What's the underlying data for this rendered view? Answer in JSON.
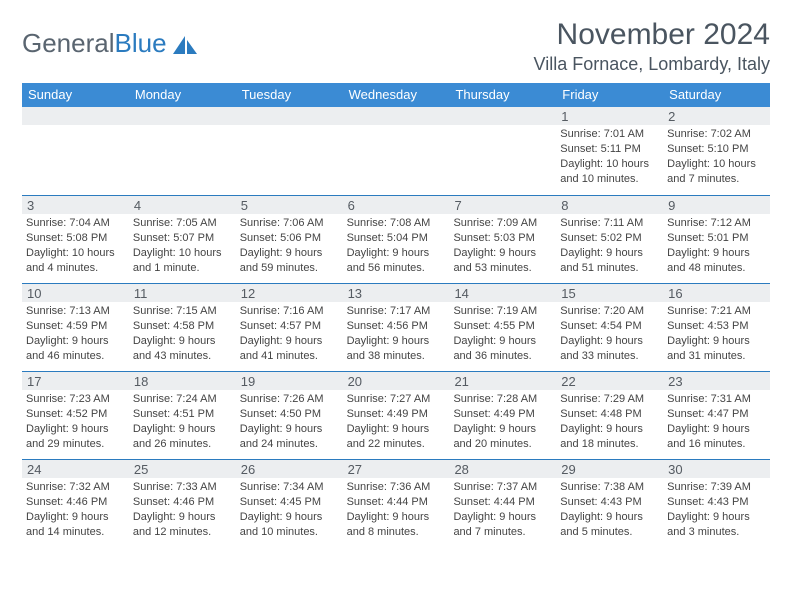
{
  "logo": {
    "text1": "General",
    "text2": "Blue"
  },
  "title": "November 2024",
  "location": "Villa Fornace, Lombardy, Italy",
  "colors": {
    "header_bg": "#3b8bd4",
    "band_bg": "#eceef0",
    "rule": "#2b7bbf",
    "text": "#444444",
    "title_text": "#4a5560"
  },
  "weekdays": [
    "Sunday",
    "Monday",
    "Tuesday",
    "Wednesday",
    "Thursday",
    "Friday",
    "Saturday"
  ],
  "weeks": [
    [
      {
        "n": "",
        "sr": "",
        "ss": "",
        "dl": ""
      },
      {
        "n": "",
        "sr": "",
        "ss": "",
        "dl": ""
      },
      {
        "n": "",
        "sr": "",
        "ss": "",
        "dl": ""
      },
      {
        "n": "",
        "sr": "",
        "ss": "",
        "dl": ""
      },
      {
        "n": "",
        "sr": "",
        "ss": "",
        "dl": ""
      },
      {
        "n": "1",
        "sr": "Sunrise: 7:01 AM",
        "ss": "Sunset: 5:11 PM",
        "dl": "Daylight: 10 hours and 10 minutes."
      },
      {
        "n": "2",
        "sr": "Sunrise: 7:02 AM",
        "ss": "Sunset: 5:10 PM",
        "dl": "Daylight: 10 hours and 7 minutes."
      }
    ],
    [
      {
        "n": "3",
        "sr": "Sunrise: 7:04 AM",
        "ss": "Sunset: 5:08 PM",
        "dl": "Daylight: 10 hours and 4 minutes."
      },
      {
        "n": "4",
        "sr": "Sunrise: 7:05 AM",
        "ss": "Sunset: 5:07 PM",
        "dl": "Daylight: 10 hours and 1 minute."
      },
      {
        "n": "5",
        "sr": "Sunrise: 7:06 AM",
        "ss": "Sunset: 5:06 PM",
        "dl": "Daylight: 9 hours and 59 minutes."
      },
      {
        "n": "6",
        "sr": "Sunrise: 7:08 AM",
        "ss": "Sunset: 5:04 PM",
        "dl": "Daylight: 9 hours and 56 minutes."
      },
      {
        "n": "7",
        "sr": "Sunrise: 7:09 AM",
        "ss": "Sunset: 5:03 PM",
        "dl": "Daylight: 9 hours and 53 minutes."
      },
      {
        "n": "8",
        "sr": "Sunrise: 7:11 AM",
        "ss": "Sunset: 5:02 PM",
        "dl": "Daylight: 9 hours and 51 minutes."
      },
      {
        "n": "9",
        "sr": "Sunrise: 7:12 AM",
        "ss": "Sunset: 5:01 PM",
        "dl": "Daylight: 9 hours and 48 minutes."
      }
    ],
    [
      {
        "n": "10",
        "sr": "Sunrise: 7:13 AM",
        "ss": "Sunset: 4:59 PM",
        "dl": "Daylight: 9 hours and 46 minutes."
      },
      {
        "n": "11",
        "sr": "Sunrise: 7:15 AM",
        "ss": "Sunset: 4:58 PM",
        "dl": "Daylight: 9 hours and 43 minutes."
      },
      {
        "n": "12",
        "sr": "Sunrise: 7:16 AM",
        "ss": "Sunset: 4:57 PM",
        "dl": "Daylight: 9 hours and 41 minutes."
      },
      {
        "n": "13",
        "sr": "Sunrise: 7:17 AM",
        "ss": "Sunset: 4:56 PM",
        "dl": "Daylight: 9 hours and 38 minutes."
      },
      {
        "n": "14",
        "sr": "Sunrise: 7:19 AM",
        "ss": "Sunset: 4:55 PM",
        "dl": "Daylight: 9 hours and 36 minutes."
      },
      {
        "n": "15",
        "sr": "Sunrise: 7:20 AM",
        "ss": "Sunset: 4:54 PM",
        "dl": "Daylight: 9 hours and 33 minutes."
      },
      {
        "n": "16",
        "sr": "Sunrise: 7:21 AM",
        "ss": "Sunset: 4:53 PM",
        "dl": "Daylight: 9 hours and 31 minutes."
      }
    ],
    [
      {
        "n": "17",
        "sr": "Sunrise: 7:23 AM",
        "ss": "Sunset: 4:52 PM",
        "dl": "Daylight: 9 hours and 29 minutes."
      },
      {
        "n": "18",
        "sr": "Sunrise: 7:24 AM",
        "ss": "Sunset: 4:51 PM",
        "dl": "Daylight: 9 hours and 26 minutes."
      },
      {
        "n": "19",
        "sr": "Sunrise: 7:26 AM",
        "ss": "Sunset: 4:50 PM",
        "dl": "Daylight: 9 hours and 24 minutes."
      },
      {
        "n": "20",
        "sr": "Sunrise: 7:27 AM",
        "ss": "Sunset: 4:49 PM",
        "dl": "Daylight: 9 hours and 22 minutes."
      },
      {
        "n": "21",
        "sr": "Sunrise: 7:28 AM",
        "ss": "Sunset: 4:49 PM",
        "dl": "Daylight: 9 hours and 20 minutes."
      },
      {
        "n": "22",
        "sr": "Sunrise: 7:29 AM",
        "ss": "Sunset: 4:48 PM",
        "dl": "Daylight: 9 hours and 18 minutes."
      },
      {
        "n": "23",
        "sr": "Sunrise: 7:31 AM",
        "ss": "Sunset: 4:47 PM",
        "dl": "Daylight: 9 hours and 16 minutes."
      }
    ],
    [
      {
        "n": "24",
        "sr": "Sunrise: 7:32 AM",
        "ss": "Sunset: 4:46 PM",
        "dl": "Daylight: 9 hours and 14 minutes."
      },
      {
        "n": "25",
        "sr": "Sunrise: 7:33 AM",
        "ss": "Sunset: 4:46 PM",
        "dl": "Daylight: 9 hours and 12 minutes."
      },
      {
        "n": "26",
        "sr": "Sunrise: 7:34 AM",
        "ss": "Sunset: 4:45 PM",
        "dl": "Daylight: 9 hours and 10 minutes."
      },
      {
        "n": "27",
        "sr": "Sunrise: 7:36 AM",
        "ss": "Sunset: 4:44 PM",
        "dl": "Daylight: 9 hours and 8 minutes."
      },
      {
        "n": "28",
        "sr": "Sunrise: 7:37 AM",
        "ss": "Sunset: 4:44 PM",
        "dl": "Daylight: 9 hours and 7 minutes."
      },
      {
        "n": "29",
        "sr": "Sunrise: 7:38 AM",
        "ss": "Sunset: 4:43 PM",
        "dl": "Daylight: 9 hours and 5 minutes."
      },
      {
        "n": "30",
        "sr": "Sunrise: 7:39 AM",
        "ss": "Sunset: 4:43 PM",
        "dl": "Daylight: 9 hours and 3 minutes."
      }
    ]
  ]
}
